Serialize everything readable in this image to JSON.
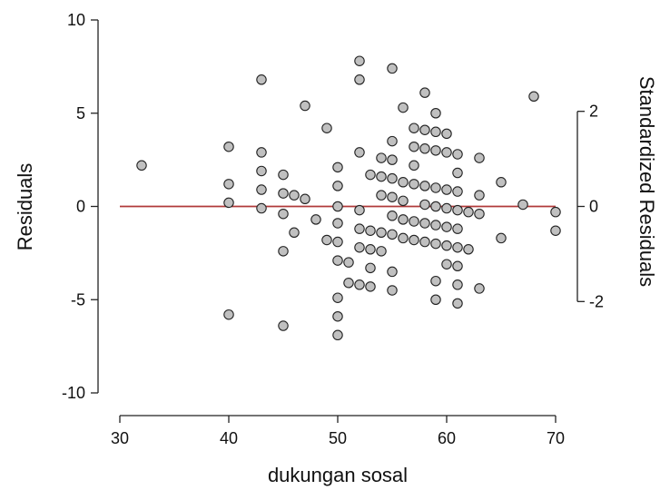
{
  "chart_data": {
    "type": "scatter",
    "xlabel": "dukungan sosal",
    "ylabel": "Residuals",
    "y2label": "Standardized Residuals",
    "xlim": [
      30,
      70
    ],
    "ylim": [
      -10,
      10
    ],
    "xticks": [
      30,
      40,
      50,
      60,
      70
    ],
    "yticks": [
      -10,
      -5,
      0,
      5,
      10
    ],
    "y2_ticks": [
      {
        "label": "-2",
        "at": -5.1
      },
      {
        "label": "0",
        "at": 0
      },
      {
        "label": "2",
        "at": 5.1
      }
    ],
    "reference_line": {
      "y": 0,
      "x_from": 30,
      "x_to": 70,
      "color": "#b03a3a"
    },
    "marker_fill": "#c0c0c0",
    "points": [
      [
        32,
        2.2
      ],
      [
        40,
        3.2
      ],
      [
        40,
        1.2
      ],
      [
        40,
        0.2
      ],
      [
        40,
        -5.8
      ],
      [
        43,
        6.8
      ],
      [
        43,
        2.9
      ],
      [
        43,
        1.9
      ],
      [
        43,
        0.9
      ],
      [
        43,
        -0.1
      ],
      [
        45,
        1.7
      ],
      [
        45,
        0.7
      ],
      [
        45,
        -0.4
      ],
      [
        45,
        -2.4
      ],
      [
        45,
        -6.4
      ],
      [
        46,
        0.6
      ],
      [
        46,
        -1.4
      ],
      [
        47,
        5.4
      ],
      [
        47,
        0.4
      ],
      [
        48,
        -0.7
      ],
      [
        49,
        4.2
      ],
      [
        49,
        -1.8
      ],
      [
        50,
        2.1
      ],
      [
        50,
        1.1
      ],
      [
        50,
        0.0
      ],
      [
        50,
        -0.9
      ],
      [
        50,
        -1.9
      ],
      [
        50,
        -2.9
      ],
      [
        50,
        -4.9
      ],
      [
        50,
        -5.9
      ],
      [
        50,
        -6.9
      ],
      [
        51,
        -3.0
      ],
      [
        51,
        -4.1
      ],
      [
        52,
        7.8
      ],
      [
        52,
        6.8
      ],
      [
        52,
        2.9
      ],
      [
        52,
        -0.2
      ],
      [
        52,
        -1.2
      ],
      [
        52,
        -2.2
      ],
      [
        52,
        -4.2
      ],
      [
        53,
        1.7
      ],
      [
        53,
        -1.3
      ],
      [
        53,
        -2.3
      ],
      [
        53,
        -3.3
      ],
      [
        53,
        -4.3
      ],
      [
        54,
        2.6
      ],
      [
        54,
        1.6
      ],
      [
        54,
        0.6
      ],
      [
        54,
        -1.4
      ],
      [
        54,
        -2.4
      ],
      [
        55,
        7.4
      ],
      [
        55,
        3.5
      ],
      [
        55,
        2.5
      ],
      [
        55,
        1.5
      ],
      [
        55,
        0.5
      ],
      [
        55,
        -0.5
      ],
      [
        55,
        -1.5
      ],
      [
        55,
        -3.5
      ],
      [
        55,
        -4.5
      ],
      [
        56,
        5.3
      ],
      [
        56,
        1.3
      ],
      [
        56,
        0.3
      ],
      [
        56,
        -0.7
      ],
      [
        56,
        -1.7
      ],
      [
        57,
        4.2
      ],
      [
        57,
        3.2
      ],
      [
        57,
        2.2
      ],
      [
        57,
        1.2
      ],
      [
        57,
        -0.8
      ],
      [
        57,
        -1.8
      ],
      [
        58,
        6.1
      ],
      [
        58,
        4.1
      ],
      [
        58,
        3.1
      ],
      [
        58,
        1.1
      ],
      [
        58,
        0.1
      ],
      [
        58,
        -0.9
      ],
      [
        58,
        -1.9
      ],
      [
        59,
        5.0
      ],
      [
        59,
        4.0
      ],
      [
        59,
        3.0
      ],
      [
        59,
        1.0
      ],
      [
        59,
        0.0
      ],
      [
        59,
        -1.0
      ],
      [
        59,
        -2.0
      ],
      [
        59,
        -4.0
      ],
      [
        59,
        -5.0
      ],
      [
        60,
        3.9
      ],
      [
        60,
        2.9
      ],
      [
        60,
        0.9
      ],
      [
        60,
        -0.1
      ],
      [
        60,
        -1.1
      ],
      [
        60,
        -2.1
      ],
      [
        60,
        -3.1
      ],
      [
        61,
        2.8
      ],
      [
        61,
        1.8
      ],
      [
        61,
        0.8
      ],
      [
        61,
        -0.2
      ],
      [
        61,
        -1.2
      ],
      [
        61,
        -2.2
      ],
      [
        61,
        -3.2
      ],
      [
        61,
        -4.2
      ],
      [
        61,
        -5.2
      ],
      [
        62,
        -0.3
      ],
      [
        62,
        -2.3
      ],
      [
        63,
        2.6
      ],
      [
        63,
        0.6
      ],
      [
        63,
        -0.4
      ],
      [
        63,
        -4.4
      ],
      [
        65,
        1.3
      ],
      [
        65,
        -1.7
      ],
      [
        67,
        0.1
      ],
      [
        68,
        5.9
      ],
      [
        70,
        -0.3
      ],
      [
        70,
        -1.3
      ]
    ]
  }
}
